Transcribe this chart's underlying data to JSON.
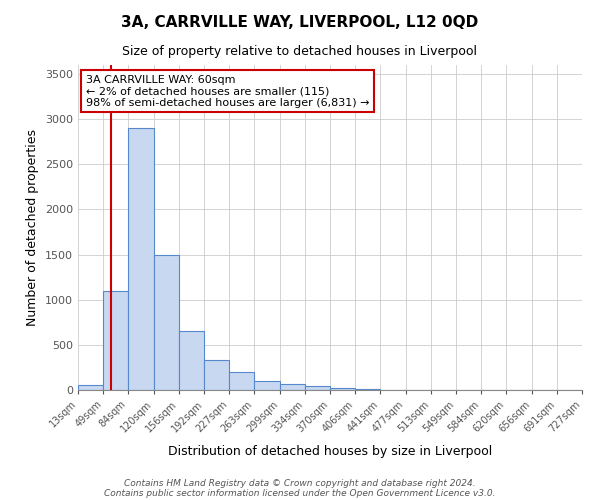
{
  "title": "3A, CARRVILLE WAY, LIVERPOOL, L12 0QD",
  "subtitle": "Size of property relative to detached houses in Liverpool",
  "xlabel": "Distribution of detached houses by size in Liverpool",
  "ylabel": "Number of detached properties",
  "bar_color": "#c8d8f0",
  "bar_edgecolor": "#5588cc",
  "vline_x": 60,
  "vline_color": "#cc0000",
  "annotation_text": "3A CARRVILLE WAY: 60sqm\n← 2% of detached houses are smaller (115)\n98% of semi-detached houses are larger (6,831) →",
  "annotation_boxcolor": "#ffffff",
  "annotation_boxedge": "#cc0000",
  "bin_edges": [
    13,
    49,
    84,
    120,
    156,
    192,
    227,
    263,
    299,
    334,
    370,
    406,
    441,
    477,
    513,
    549,
    584,
    620,
    656,
    691,
    727
  ],
  "bin_heights": [
    50,
    1100,
    2900,
    1500,
    650,
    330,
    200,
    100,
    70,
    45,
    20,
    8,
    5,
    3,
    2,
    1,
    1,
    1,
    1,
    1
  ],
  "ylim": [
    0,
    3600
  ],
  "yticks": [
    0,
    500,
    1000,
    1500,
    2000,
    2500,
    3000,
    3500
  ],
  "footer_line1": "Contains HM Land Registry data © Crown copyright and database right 2024.",
  "footer_line2": "Contains public sector information licensed under the Open Government Licence v3.0.",
  "background_color": "#ffffff",
  "grid_color": "#cccccc"
}
